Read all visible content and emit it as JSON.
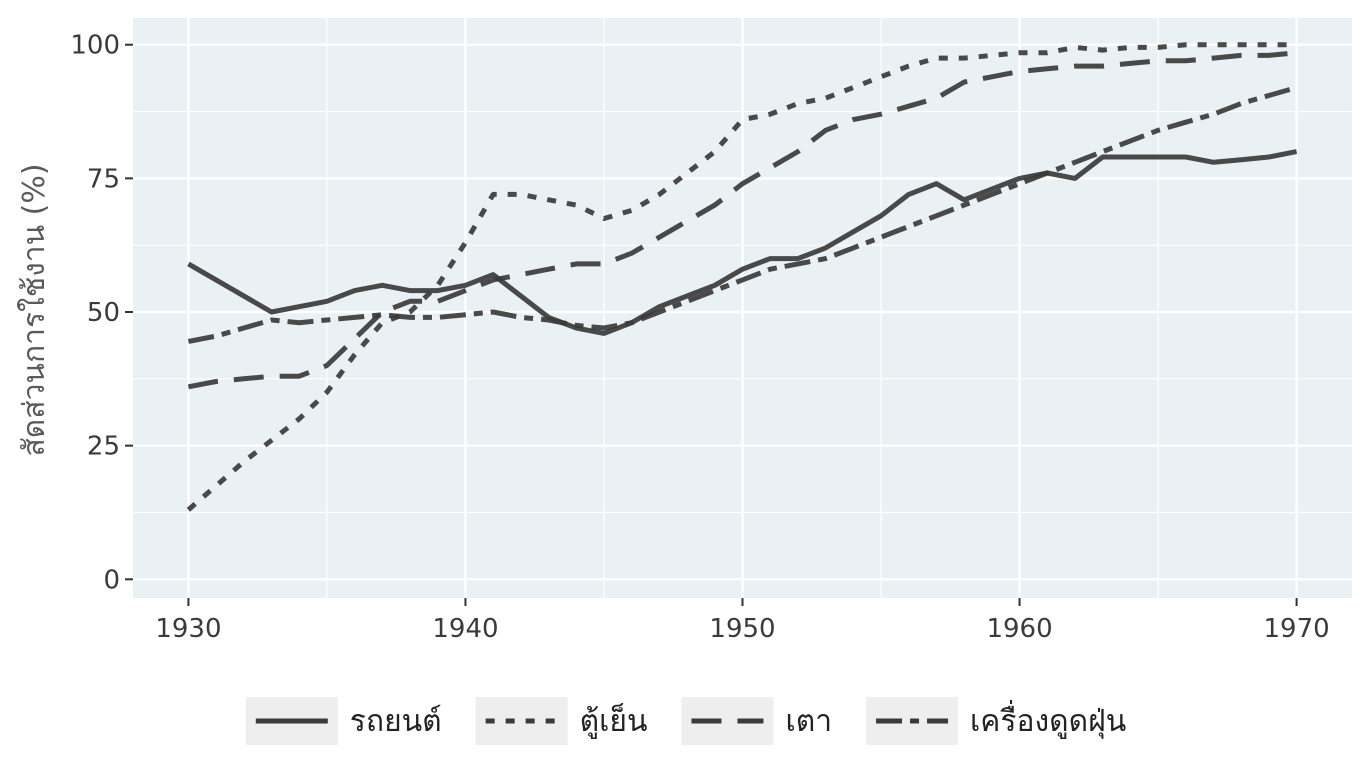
{
  "chart_data": {
    "type": "line",
    "title": "",
    "xlabel": "",
    "ylabel": "สัดส่วนการใช้งาน (%)",
    "xlim": [
      1928,
      1972
    ],
    "ylim": [
      -3.5,
      105
    ],
    "x_ticks": [
      1930,
      1940,
      1950,
      1960,
      1970
    ],
    "y_ticks": [
      0,
      25,
      50,
      75,
      100
    ],
    "grid": true,
    "legend_position": "bottom",
    "colors": {
      "panel": "#e9f1f5",
      "grid": "#ffffff",
      "line": "#3b3b3b",
      "legend_key_bg": "#eeeeee"
    },
    "series": [
      {
        "name": "รถยนต์",
        "line_style": "solid",
        "x": [
          1930,
          1933,
          1935,
          1936,
          1937,
          1938,
          1939,
          1940,
          1941,
          1942,
          1943,
          1944,
          1945,
          1946,
          1947,
          1948,
          1949,
          1950,
          1951,
          1952,
          1953,
          1954,
          1955,
          1956,
          1957,
          1958,
          1959,
          1960,
          1961,
          1962,
          1963,
          1964,
          1965,
          1966,
          1967,
          1968,
          1969,
          1970
        ],
        "y": [
          59,
          50,
          52,
          54,
          55,
          54,
          54,
          55,
          57,
          53,
          49,
          47,
          46,
          48,
          51,
          53,
          55,
          58,
          60,
          60,
          62,
          65,
          68,
          72,
          74,
          71,
          73,
          75,
          76,
          75,
          79,
          79,
          79,
          79,
          78,
          78.5,
          79,
          80
        ]
      },
      {
        "name": "ตู้เย็น",
        "line_style": "dotted",
        "x": [
          1930,
          1932,
          1933,
          1934,
          1935,
          1936,
          1937,
          1938,
          1939,
          1940,
          1941,
          1942,
          1943,
          1944,
          1945,
          1946,
          1947,
          1948,
          1949,
          1950,
          1951,
          1952,
          1953,
          1954,
          1955,
          1956,
          1957,
          1958,
          1959,
          1960,
          1961,
          1962,
          1963,
          1964,
          1965,
          1966,
          1967,
          1968,
          1969,
          1970
        ],
        "y": [
          13,
          22,
          26,
          30,
          35,
          42,
          48,
          50,
          55,
          63,
          72,
          72,
          71,
          70,
          67.5,
          69,
          72,
          76,
          80,
          86,
          87,
          89,
          90,
          92,
          94,
          96,
          97.5,
          97.5,
          98,
          98.5,
          98.5,
          99.5,
          99,
          99.5,
          99.5,
          100,
          100,
          100,
          100,
          100
        ]
      },
      {
        "name": "เตา",
        "line_style": "dashed",
        "x": [
          1930,
          1931,
          1932,
          1933,
          1934,
          1935,
          1936,
          1937,
          1938,
          1939,
          1940,
          1941,
          1942,
          1943,
          1944,
          1945,
          1946,
          1947,
          1948,
          1949,
          1950,
          1951,
          1952,
          1953,
          1954,
          1955,
          1956,
          1957,
          1958,
          1959,
          1960,
          1961,
          1962,
          1963,
          1964,
          1965,
          1966,
          1967,
          1968,
          1969,
          1970
        ],
        "y": [
          36,
          37,
          37.5,
          38,
          38,
          40,
          45,
          50,
          52,
          52,
          54,
          56,
          57,
          58,
          59,
          59,
          61,
          64,
          67,
          70,
          74,
          77,
          80,
          84,
          86,
          87,
          88.5,
          90,
          93,
          94,
          95,
          95.5,
          96,
          96,
          96.5,
          97,
          97,
          97.5,
          98,
          98,
          98.5
        ]
      },
      {
        "name": "เครื่องดูดฝุ่น",
        "line_style": "dotdash",
        "x": [
          1930,
          1931,
          1932,
          1933,
          1934,
          1935,
          1936,
          1937,
          1938,
          1939,
          1940,
          1941,
          1942,
          1943,
          1944,
          1945,
          1946,
          1947,
          1948,
          1949,
          1950,
          1951,
          1952,
          1953,
          1954,
          1955,
          1956,
          1957,
          1958,
          1959,
          1960,
          1961,
          1962,
          1963,
          1964,
          1965,
          1966,
          1967,
          1968,
          1969,
          1970
        ],
        "y": [
          44.5,
          45.5,
          47,
          48.5,
          48,
          48.5,
          49,
          49.5,
          49,
          49,
          49.5,
          50,
          49,
          48.5,
          47.5,
          47,
          48,
          50,
          52,
          54,
          56,
          58,
          59,
          60,
          62,
          64,
          66,
          68,
          70,
          72,
          74,
          76,
          78,
          80,
          82,
          84,
          85.5,
          87,
          89,
          90.5,
          92
        ]
      }
    ]
  }
}
